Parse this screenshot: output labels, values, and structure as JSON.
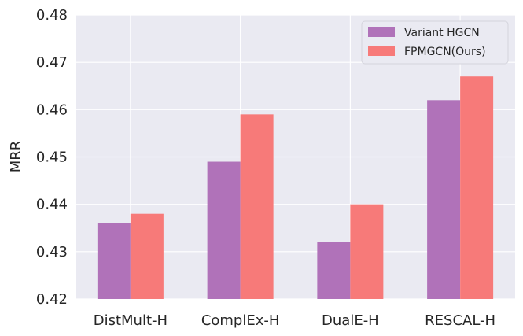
{
  "chart_data": {
    "type": "bar",
    "categories": [
      "DistMult-H",
      "ComplEx-H",
      "DualE-H",
      "RESCAL-H"
    ],
    "series": [
      {
        "name": "Variant HGCN",
        "values": [
          0.436,
          0.449,
          0.432,
          0.462
        ],
        "color": "#b072b9"
      },
      {
        "name": "FPMGCN(Ours)",
        "values": [
          0.438,
          0.459,
          0.44,
          0.467
        ],
        "color": "#f77a79"
      }
    ],
    "title": "",
    "xlabel": "",
    "ylabel": "MRR",
    "ylim": [
      0.42,
      0.48
    ],
    "yticks": [
      "0.42",
      "0.43",
      "0.44",
      "0.45",
      "0.46",
      "0.47",
      "0.48"
    ],
    "grid": true,
    "legend_position": "top-right",
    "plot_background": "#eaeaf2"
  }
}
